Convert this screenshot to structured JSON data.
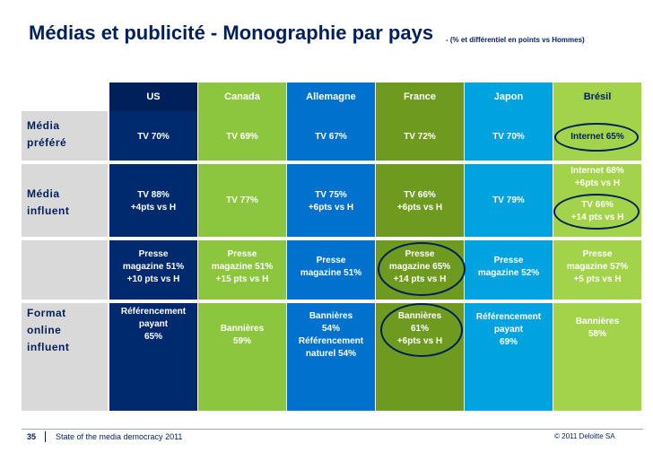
{
  "title": "Médias et publicité - Monographie par pays",
  "subtitle": "- (% et différentiel en points vs Hommes)",
  "columns": [
    {
      "name": "US",
      "bg": "#00205b",
      "cell": "#002a6e",
      "text": "#ffffff"
    },
    {
      "name": "Canada",
      "bg": "#8cc63f",
      "cell": "#8cc63f",
      "text": "#ffffff"
    },
    {
      "name": "Allemagne",
      "bg": "#0072ce",
      "cell": "#0072ce",
      "text": "#ffffff"
    },
    {
      "name": "France",
      "bg": "#6e9a1f",
      "cell": "#6e9a1f",
      "text": "#ffffff"
    },
    {
      "name": "Japon",
      "bg": "#00a3e0",
      "cell": "#00a3e0",
      "text": "#ffffff"
    },
    {
      "name": "Brésil",
      "bg": "#a3d34a",
      "cell": "#a3d34a",
      "text": "#00205b"
    }
  ],
  "rows": [
    {
      "label": "Média\npréféré"
    },
    {
      "label": "Média\ninfluent"
    },
    {
      "label": "Format\nonline\ninfluent"
    }
  ],
  "cells": {
    "media_prefere": [
      "TV 70%",
      "TV 69%",
      "TV 67%",
      "TV 72%",
      "TV 70%",
      "Internet 65%"
    ],
    "media_influent": [
      "TV 88%\n+4pts vs H",
      "TV 77%",
      "TV 75%\n+6pts vs H",
      "TV 66%\n+6pts vs H",
      "TV 79%",
      "Internet 68%\n+6pts vs H"
    ],
    "bresil_tv": "TV 66%\n+14 pts vs H",
    "presse": [
      "Presse\nmagazine 51%\n+10 pts vs H",
      "Presse\nmagazine 51%\n+15 pts vs H",
      "Presse\nmagazine 51%",
      "Presse\nmagazine 65%\n+14 pts vs H",
      "Presse\nmagazine 52%",
      "Presse\nmagazine 57%\n+5 pts vs H"
    ],
    "online": [
      "Référencement\npayant\n65%",
      "Bannières\n59%",
      "Bannières\n54%\nRéférencement\nnaturel 54%",
      "Bannières\n61%\n+6pts vs H",
      "Référencement\npayant\n69%",
      "Bannières\n58%"
    ]
  },
  "footer": {
    "page": "35",
    "source": "State of the media democracy 2011",
    "copyright": "© 2011 Deloitte SA"
  }
}
